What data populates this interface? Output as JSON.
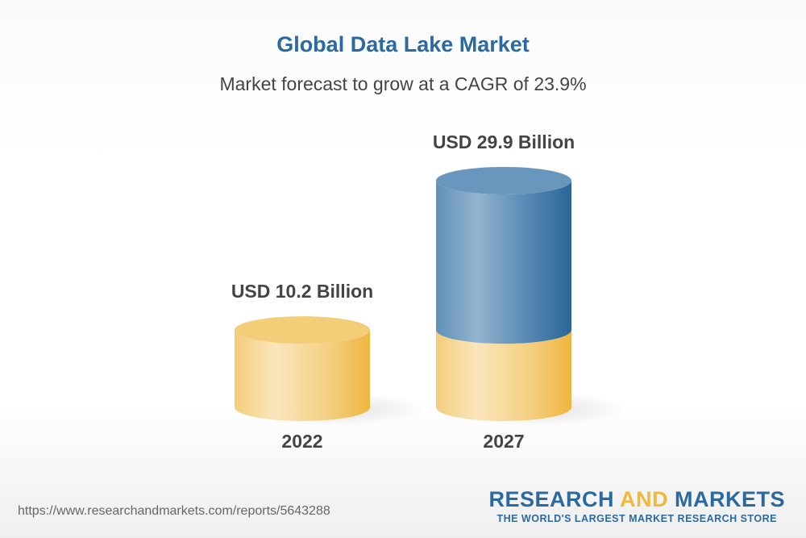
{
  "title": "Global Data Lake Market",
  "subtitle": "Market forecast to grow at a CAGR of 23.9%",
  "chart_data": {
    "type": "bar",
    "style": "3d-cylinder",
    "categories": [
      "2022",
      "2027"
    ],
    "values": [
      10.2,
      29.9
    ],
    "data_labels": [
      "USD 10.2 Billion",
      "USD 29.9 Billion"
    ],
    "colors": {
      "base": "#f2c46a",
      "growth": "#2b6aa0"
    },
    "grid": false
  },
  "footer": {
    "url": "https://www.researchandmarkets.com/reports/5643288",
    "logo": {
      "part1": "RESEARCH ",
      "part2": "AND",
      "part3": " MARKETS",
      "tagline": "THE WORLD'S LARGEST MARKET RESEARCH STORE"
    }
  }
}
